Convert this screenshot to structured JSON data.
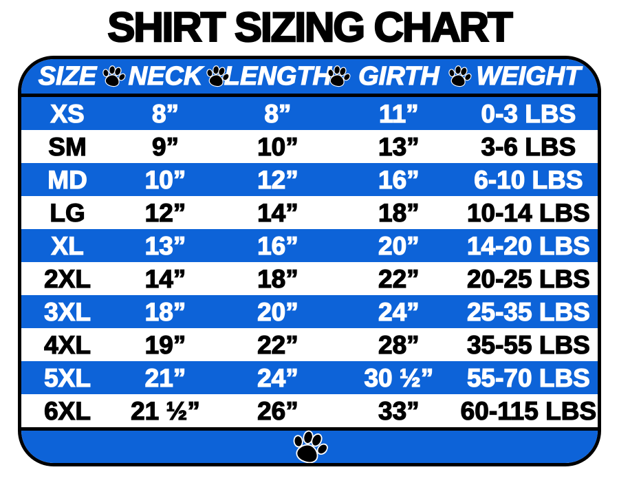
{
  "title": "SHIRT SIZING CHART",
  "colors": {
    "table_blue": "#0d63d8",
    "text_on_blue": "#ffffff",
    "text_on_white": "#000000",
    "border": "#000000"
  },
  "icons": {
    "header_divider": "paw-icon",
    "footer": "paw-icon"
  },
  "chart_data": {
    "type": "table",
    "title": "SHIRT SIZING CHART",
    "columns": [
      "SIZE",
      "NECK",
      "LENGTH",
      "GIRTH",
      "WEIGHT"
    ],
    "rows": [
      [
        "XS",
        "8”",
        "8”",
        "11”",
        "0-3 LBS"
      ],
      [
        "SM",
        "9”",
        "10”",
        "13”",
        "3-6 LBS"
      ],
      [
        "MD",
        "10”",
        "12”",
        "16”",
        "6-10 LBS"
      ],
      [
        "LG",
        "12”",
        "14”",
        "18”",
        "10-14 LBS"
      ],
      [
        "XL",
        "13”",
        "16”",
        "20”",
        "14-20 LBS"
      ],
      [
        "2XL",
        "14”",
        "18”",
        "22”",
        "20-25 LBS"
      ],
      [
        "3XL",
        "18”",
        "20”",
        "24”",
        "25-35 LBS"
      ],
      [
        "4XL",
        "19”",
        "22”",
        "28”",
        "35-55 LBS"
      ],
      [
        "5XL",
        "21”",
        "24”",
        "30 ½”",
        "55-70 LBS"
      ],
      [
        "6XL",
        "21 ½”",
        "26”",
        "33”",
        "60-115 LBS"
      ]
    ],
    "row_style_alternation": [
      "blue",
      "white"
    ],
    "legend_position": "none",
    "grid": false
  }
}
